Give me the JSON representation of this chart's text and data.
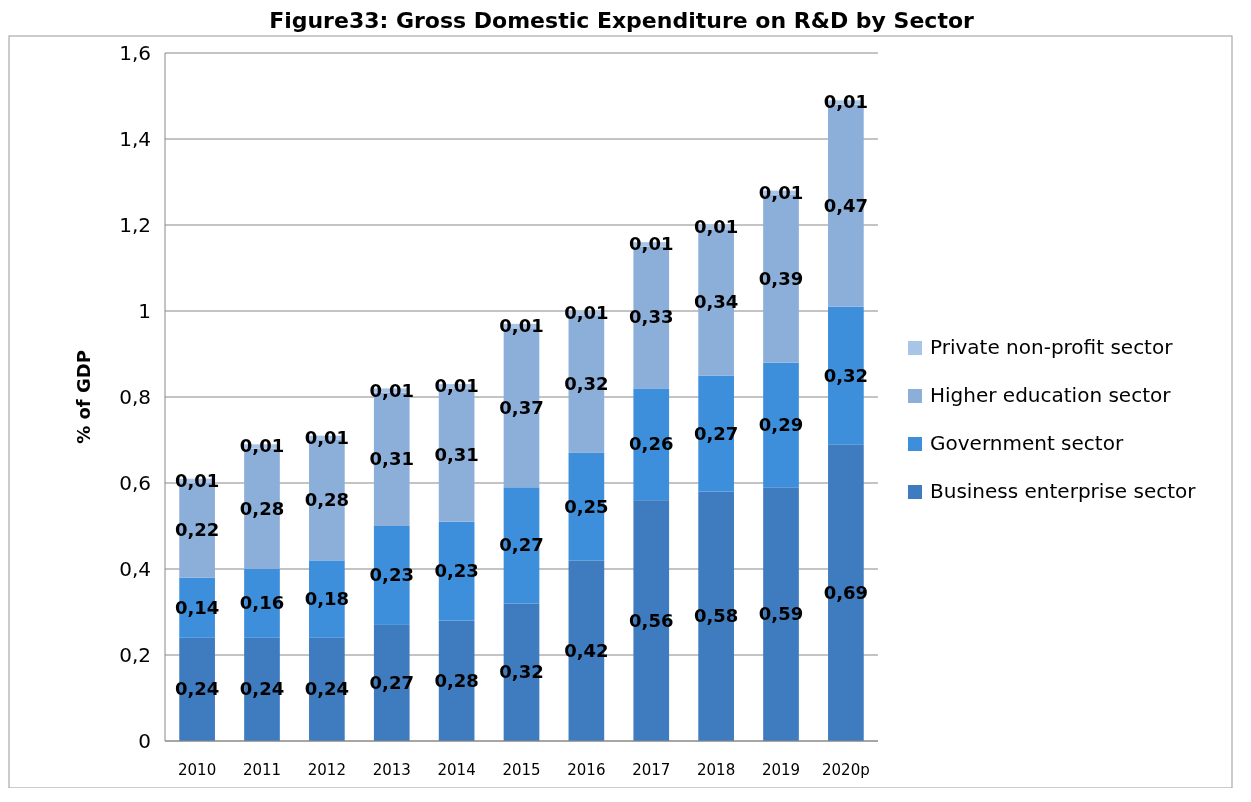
{
  "chart_data": {
    "type": "bar",
    "title": "Figure33: Gross Domestic Expenditure on R&D by Sector",
    "ylabel": "% of GDP",
    "stacked": true,
    "grid": "y",
    "legend": "right",
    "categories": [
      "2010",
      "2011",
      "2012",
      "2013",
      "2014",
      "2015",
      "2016",
      "2017",
      "2018",
      "2019",
      "2020p"
    ],
    "ylim": [
      0,
      1.6
    ],
    "yticks": [
      {
        "value": 0,
        "label": "0"
      },
      {
        "value": 0.2,
        "label": "0,2"
      },
      {
        "value": 0.4,
        "label": "0,4"
      },
      {
        "value": 0.6,
        "label": "0,6"
      },
      {
        "value": 0.8,
        "label": "0,8"
      },
      {
        "value": 1,
        "label": "1"
      },
      {
        "value": 1.2,
        "label": "1,2"
      },
      {
        "value": 1.4,
        "label": "1,4"
      },
      {
        "value": 1.6,
        "label": "1,6"
      }
    ],
    "series": [
      {
        "name": "Business enterprise sector",
        "color": "#3f7cbf",
        "values": [
          0.24,
          0.24,
          0.24,
          0.27,
          0.28,
          0.32,
          0.42,
          0.56,
          0.58,
          0.59,
          0.69
        ],
        "value_labels": [
          "0,24",
          "0,24",
          "0,24",
          "0,27",
          "0,28",
          "0,32",
          "0,42",
          "0,56",
          "0,58",
          "0,59",
          "0,69"
        ]
      },
      {
        "name": "Government sector",
        "color": "#3d8fdb",
        "values": [
          0.14,
          0.16,
          0.18,
          0.23,
          0.23,
          0.27,
          0.25,
          0.26,
          0.27,
          0.29,
          0.32
        ],
        "value_labels": [
          "0,14",
          "0,16",
          "0,18",
          "0,23",
          "0,23",
          "0,27",
          "0,25",
          "0,26",
          "0,27",
          "0,29",
          "0,32"
        ]
      },
      {
        "name": "Higher education sector",
        "color": "#8cafd9",
        "values": [
          0.22,
          0.28,
          0.28,
          0.31,
          0.31,
          0.37,
          0.32,
          0.33,
          0.34,
          0.39,
          0.47
        ],
        "value_labels": [
          "0,22",
          "0,28",
          "0,28",
          "0,31",
          "0,31",
          "0,37",
          "0,32",
          "0,33",
          "0,34",
          "0,39",
          "0,47"
        ]
      },
      {
        "name": "Private non-profit sector",
        "color": "#a8c5e8",
        "values": [
          0.01,
          0.01,
          0.01,
          0.01,
          0.01,
          0.01,
          0.01,
          0.01,
          0.01,
          0.01,
          0.01
        ],
        "value_labels": [
          "0,01",
          "0,01",
          "0,01",
          "0,01",
          "0,01",
          "0,01",
          "0,01",
          "0,01",
          "0,01",
          "0,01",
          "0,01"
        ]
      }
    ]
  }
}
